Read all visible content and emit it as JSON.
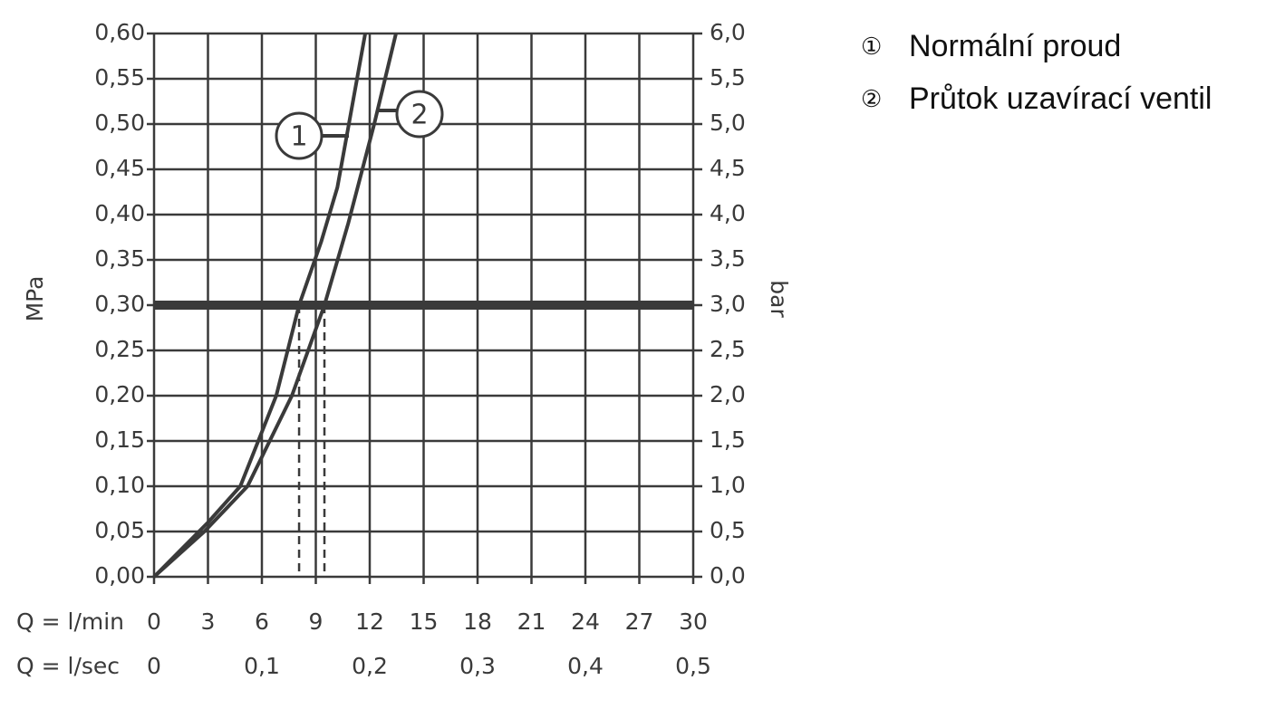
{
  "chart_data": {
    "type": "line",
    "xlabel": "Q = l/min",
    "x2label": "Q = l/sec",
    "ylabel": "MPa",
    "y2label": "bar",
    "xlim": [
      0,
      30
    ],
    "xticks": [
      0,
      3,
      6,
      9,
      12,
      15,
      18,
      21,
      24,
      27,
      30
    ],
    "x2lim": [
      0,
      0.5
    ],
    "x2ticks": [
      0,
      {
        "value": 0.1,
        "label": "0,1"
      },
      {
        "value": 0.2,
        "label": "0,2"
      },
      {
        "value": 0.3,
        "label": "0,3"
      },
      {
        "value": 0.4,
        "label": "0,4"
      },
      {
        "value": 0.5,
        "label": "0,5"
      }
    ],
    "ylim": [
      0,
      0.6
    ],
    "yticks": [
      {
        "value": 0,
        "label": "0,00"
      },
      {
        "value": 0.05,
        "label": "0,05"
      },
      {
        "value": 0.1,
        "label": "0,10"
      },
      {
        "value": 0.15,
        "label": "0,15"
      },
      {
        "value": 0.2,
        "label": "0,20"
      },
      {
        "value": 0.25,
        "label": "0,25"
      },
      {
        "value": 0.3,
        "label": "0,30"
      },
      {
        "value": 0.35,
        "label": "0,35"
      },
      {
        "value": 0.4,
        "label": "0,40"
      },
      {
        "value": 0.45,
        "label": "0,45"
      },
      {
        "value": 0.5,
        "label": "0,50"
      },
      {
        "value": 0.55,
        "label": "0,55"
      },
      {
        "value": 0.6,
        "label": "0,60"
      }
    ],
    "y2lim": [
      0,
      6
    ],
    "y2ticks": [
      {
        "value": 0,
        "label": "0,0"
      },
      {
        "value": 0.5,
        "label": "0,5"
      },
      {
        "value": 1,
        "label": "1,0"
      },
      {
        "value": 1.5,
        "label": "1,5"
      },
      {
        "value": 2,
        "label": "2,0"
      },
      {
        "value": 2.5,
        "label": "2,5"
      },
      {
        "value": 3,
        "label": "3,0"
      },
      {
        "value": 3.5,
        "label": "3,5"
      },
      {
        "value": 4,
        "label": "4,0"
      },
      {
        "value": 4.5,
        "label": "4,5"
      },
      {
        "value": 5,
        "label": "5,0"
      },
      {
        "value": 5.5,
        "label": "5,5"
      },
      {
        "value": 6,
        "label": "6,0"
      }
    ],
    "reference_line": 0.3,
    "grid": true,
    "color": "#3a3a3a",
    "series": [
      {
        "name": "Normální proud",
        "symbol": "①",
        "callout": "1",
        "color": "#3a3a3a",
        "x": [
          0,
          3,
          4.8,
          6.8,
          8.07,
          9.3,
          10.2,
          10.84,
          11.75
        ],
        "values": [
          0,
          0.06,
          0.1,
          0.2,
          0.3,
          0.37,
          0.43,
          0.5,
          0.6
        ]
      },
      {
        "name": "Průtok uzavírací ventil",
        "symbol": "②",
        "callout": "2",
        "color": "#3a3a3a",
        "x": [
          0,
          2.8,
          5.2,
          7.67,
          9.48,
          10.8,
          12.25,
          13.46
        ],
        "values": [
          0,
          0.05,
          0.1,
          0.2,
          0.3,
          0.39,
          0.5,
          0.6
        ]
      }
    ]
  }
}
